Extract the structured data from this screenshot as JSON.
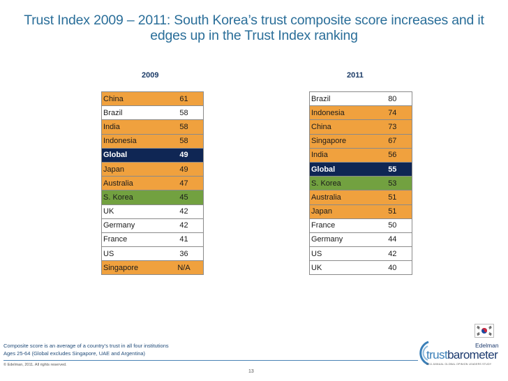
{
  "title": "Trust Index 2009 – 2011: South Korea’s trust composite score increases and it edges up in the Trust Index ranking",
  "table_2009": {
    "year": "2009",
    "rows": [
      {
        "country": "China",
        "score": "61",
        "style": "orange"
      },
      {
        "country": "Brazil",
        "score": "58",
        "style": "white"
      },
      {
        "country": "India",
        "score": "58",
        "style": "orange"
      },
      {
        "country": "Indonesia",
        "score": "58",
        "style": "orange"
      },
      {
        "country": "Global",
        "score": "49",
        "style": "navy"
      },
      {
        "country": "Japan",
        "score": "49",
        "style": "orange"
      },
      {
        "country": "Australia",
        "score": "47",
        "style": "orange"
      },
      {
        "country": "S. Korea",
        "score": "45",
        "style": "green"
      },
      {
        "country": "UK",
        "score": "42",
        "style": "white"
      },
      {
        "country": "Germany",
        "score": "42",
        "style": "white"
      },
      {
        "country": "France",
        "score": "41",
        "style": "white"
      },
      {
        "country": "US",
        "score": "36",
        "style": "white"
      },
      {
        "country": "Singapore",
        "score": "N/A",
        "style": "orange"
      }
    ]
  },
  "table_2011": {
    "year": "2011",
    "rows": [
      {
        "country": "Brazil",
        "score": "80",
        "style": "white"
      },
      {
        "country": "Indonesia",
        "score": "74",
        "style": "orange"
      },
      {
        "country": "China",
        "score": "73",
        "style": "orange"
      },
      {
        "country": "Singapore",
        "score": "67",
        "style": "orange"
      },
      {
        "country": "India",
        "score": "56",
        "style": "orange"
      },
      {
        "country": "Global",
        "score": "55",
        "style": "navy"
      },
      {
        "country": "S. Korea",
        "score": "53",
        "style": "green"
      },
      {
        "country": "Australia",
        "score": "51",
        "style": "orange"
      },
      {
        "country": "Japan",
        "score": "51",
        "style": "orange"
      },
      {
        "country": "France",
        "score": "50",
        "style": "white"
      },
      {
        "country": "Germany",
        "score": "44",
        "style": "white"
      },
      {
        "country": "US",
        "score": "42",
        "style": "white"
      },
      {
        "country": "UK",
        "score": "40",
        "style": "white"
      }
    ]
  },
  "colors": {
    "orange": "#f0a13e",
    "navy": "#0f2654",
    "green": "#72a140",
    "title_blue": "#2a6e99"
  },
  "footer": {
    "note_line_1": "Composite score is an average of a country’s trust in all four institutions",
    "note_line_2": "Ages 25-64 (Global excludes Singapore, UAE and Argentina)",
    "copyright": "© Edelman, 2011. All rights reserved.",
    "page_number": "13"
  },
  "logo": {
    "brand": "Edelman",
    "word_1": "trust",
    "word_2": "barometer",
    "tagline": "2011 ANNUAL GLOBAL OPINION LEADERS STUDY"
  },
  "flag_icon": "south-korea-flag-icon"
}
